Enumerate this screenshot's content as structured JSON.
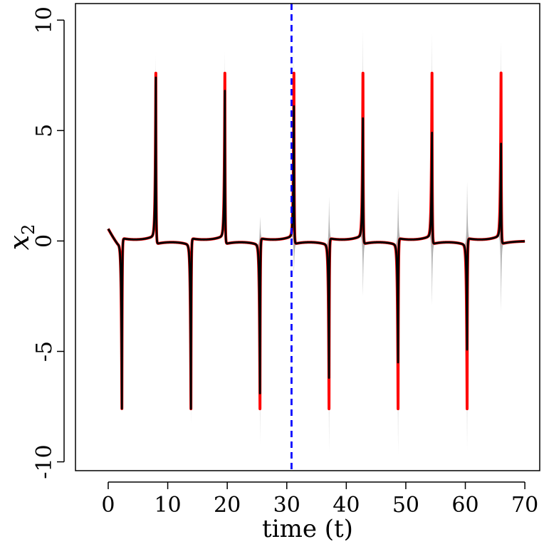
{
  "chart_data": {
    "type": "line",
    "xlabel": "time (t)",
    "ylabel": "x2",
    "xlim": [
      -5.5,
      72.5
    ],
    "ylim": [
      -10.4,
      10.75
    ],
    "xticks": [
      0,
      10,
      20,
      30,
      40,
      50,
      60,
      70
    ],
    "yticks": [
      -10,
      -5,
      0,
      5,
      10
    ],
    "xtick_labels": [
      "0",
      "10",
      "20",
      "30",
      "40",
      "50",
      "60",
      "70"
    ],
    "ytick_labels": [
      "-10",
      "-5",
      "0",
      "5",
      "10"
    ],
    "vline_x": 30.8,
    "cycle": {
      "t_start": 0,
      "t_end": 70,
      "neg_spike_times": [
        2.3,
        13.9,
        25.5,
        37.1,
        48.7,
        60.3
      ],
      "pos_spike_times": [
        8.0,
        19.6,
        31.2,
        42.8,
        54.4,
        66.0
      ],
      "amplitude": 7.6,
      "true_neg_peaks": [
        -7.6,
        -7.6,
        -7.6,
        -7.6,
        -7.6,
        -7.6
      ],
      "true_pos_peaks": [
        7.6,
        7.6,
        7.6,
        7.6,
        7.6,
        7.6
      ],
      "est_neg_peaks": [
        -7.6,
        -7.6,
        -6.9,
        -6.2,
        -5.5,
        -4.9
      ],
      "est_pos_peaks": [
        7.4,
        6.8,
        6.1,
        5.5,
        4.9,
        4.4
      ],
      "band_neg_low": [
        -7.6,
        -8.3,
        -9.2,
        -9.6,
        -9.7,
        -9.5
      ],
      "band_neg_high": [
        -7.6,
        -7.0,
        1.1,
        2.0,
        2.4,
        2.7
      ],
      "band_pos_low": [
        7.3,
        6.5,
        -1.5,
        -2.5,
        -2.9,
        -3.2
      ],
      "band_pos_high": [
        8.4,
        8.6,
        8.7,
        9.6,
        9.4,
        9.1
      ]
    },
    "series": [
      {
        "color": "#b3b3b3",
        "style": "uncertainty band"
      },
      {
        "color": "#ff0000",
        "style": "line"
      },
      {
        "color": "#000000",
        "style": "line"
      }
    ],
    "vline_color": "#0000ff",
    "grid": false,
    "legend": "none"
  }
}
